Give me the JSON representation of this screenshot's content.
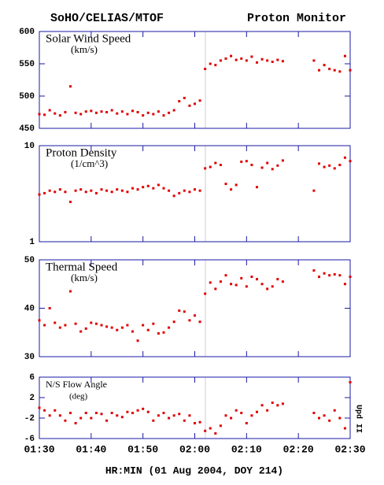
{
  "title_left": "SoHO/CELIAS/MTOF",
  "title_right": "Proton Monitor",
  "xlabel": "HR:MIN (01 Aug 2004, DOY 214)",
  "side_note": "Upd II",
  "chart_data": [
    {
      "type": "scatter",
      "title": "Solar Wind Speed",
      "units": "(km/s)",
      "color": "#e00000",
      "x": [
        0,
        1,
        2,
        3,
        4,
        5,
        6,
        7,
        8,
        9,
        10,
        11,
        12,
        13,
        14,
        15,
        16,
        17,
        18,
        19,
        20,
        21,
        22,
        23,
        24,
        25,
        26,
        27,
        28,
        29,
        30,
        31,
        32,
        33,
        34,
        35,
        36,
        37,
        38,
        39,
        40,
        41,
        42,
        43,
        44,
        45,
        46,
        47,
        53,
        54,
        55,
        56,
        57,
        58,
        59,
        60
      ],
      "values": [
        472,
        471,
        478,
        473,
        470,
        475,
        515,
        474,
        472,
        476,
        477,
        474,
        476,
        475,
        478,
        473,
        476,
        472,
        477,
        475,
        470,
        474,
        472,
        476,
        470,
        474,
        478,
        492,
        497,
        485,
        488,
        493,
        542,
        550,
        548,
        555,
        558,
        562,
        556,
        558,
        555,
        561,
        552,
        557,
        555,
        553,
        556,
        554,
        555,
        540,
        548,
        542,
        540,
        538,
        562,
        540
      ],
      "xlim": [
        0,
        60
      ],
      "ylim": [
        450,
        600
      ],
      "yticks": [
        450,
        500,
        550,
        600
      ]
    },
    {
      "type": "scatter",
      "title": "Proton Density",
      "units": "(1/cm^3)",
      "color": "#e00000",
      "log": true,
      "x": [
        0,
        1,
        2,
        3,
        4,
        5,
        6,
        7,
        8,
        9,
        10,
        11,
        12,
        13,
        14,
        15,
        16,
        17,
        18,
        19,
        20,
        21,
        22,
        23,
        24,
        25,
        26,
        27,
        28,
        29,
        30,
        31,
        32,
        33,
        34,
        35,
        36,
        37,
        38,
        39,
        40,
        41,
        42,
        43,
        44,
        45,
        46,
        47,
        53,
        54,
        55,
        56,
        57,
        58,
        59,
        60
      ],
      "values": [
        3.1,
        3.2,
        3.4,
        3.3,
        3.5,
        3.3,
        2.6,
        3.4,
        3.5,
        3.3,
        3.4,
        3.2,
        3.5,
        3.4,
        3.3,
        3.5,
        3.4,
        3.3,
        3.6,
        3.5,
        3.7,
        3.8,
        3.6,
        3.9,
        3.6,
        3.4,
        3.0,
        3.2,
        3.4,
        3.3,
        3.5,
        3.4,
        5.8,
        6.0,
        6.6,
        6.3,
        4.0,
        3.5,
        3.9,
        6.8,
        6.9,
        6.3,
        3.7,
        5.9,
        6.6,
        5.7,
        6.2,
        7.0,
        3.4,
        6.5,
        6.0,
        6.2,
        5.8,
        6.3,
        7.5,
        6.9
      ],
      "xlim": [
        0,
        60
      ],
      "ylim": [
        1,
        10
      ],
      "yticks": [
        1,
        10
      ]
    },
    {
      "type": "scatter",
      "title": "Thermal Speed",
      "units": "(km/s)",
      "color": "#e00000",
      "x": [
        0,
        1,
        2,
        3,
        4,
        5,
        6,
        7,
        8,
        9,
        10,
        11,
        12,
        13,
        14,
        15,
        16,
        17,
        18,
        19,
        20,
        21,
        22,
        23,
        24,
        25,
        26,
        27,
        28,
        29,
        30,
        31,
        32,
        33,
        34,
        35,
        36,
        37,
        38,
        39,
        40,
        41,
        42,
        43,
        44,
        45,
        46,
        47,
        53,
        54,
        55,
        56,
        57,
        58,
        59,
        60
      ],
      "values": [
        37.5,
        36.5,
        40,
        37,
        36,
        36.5,
        43.5,
        36.8,
        35.2,
        35.8,
        37,
        36.8,
        36.5,
        36.2,
        36,
        35.5,
        36,
        36.5,
        35.2,
        33.3,
        36.5,
        35.5,
        36.8,
        34.8,
        35,
        36,
        37.2,
        39.5,
        39.3,
        37.5,
        38.5,
        37.2,
        43,
        45.3,
        44,
        45.5,
        46.8,
        45,
        44.8,
        46.2,
        44.5,
        46.5,
        46,
        45,
        44,
        44.5,
        46,
        45.5,
        47.8,
        46.5,
        47.2,
        46.8,
        47,
        46.8,
        45,
        46.5
      ],
      "xlim": [
        0,
        60
      ],
      "ylim": [
        30,
        50
      ],
      "yticks": [
        30,
        40,
        50
      ]
    },
    {
      "type": "scatter",
      "title": "N/S Flow Angle",
      "units": "(deg)",
      "color": "#e00000",
      "x": [
        0,
        1,
        2,
        3,
        4,
        5,
        6,
        7,
        8,
        9,
        10,
        11,
        12,
        13,
        14,
        15,
        16,
        17,
        18,
        19,
        20,
        21,
        22,
        23,
        24,
        25,
        26,
        27,
        28,
        29,
        30,
        31,
        32,
        33,
        34,
        35,
        36,
        37,
        38,
        39,
        40,
        41,
        42,
        43,
        44,
        45,
        46,
        47,
        53,
        54,
        55,
        56,
        57,
        58,
        59,
        60
      ],
      "values": [
        0,
        -0.5,
        -1.5,
        -0.5,
        -1.5,
        -2.5,
        -1,
        -3,
        -2,
        -1,
        -2,
        -1,
        -1.2,
        -2.5,
        -1,
        -1.5,
        -1.8,
        -0.8,
        -1,
        -0.5,
        -0.2,
        -0.8,
        -2.5,
        -1.5,
        -1,
        -2,
        -1.5,
        -1.2,
        -2.5,
        -1.5,
        -3,
        -2.8,
        -4.5,
        -4,
        -5,
        -3.5,
        -1.5,
        -2,
        -0.5,
        -1,
        -3,
        -1.5,
        -0.8,
        0.5,
        -0.5,
        1,
        0.5,
        0.8,
        -1,
        -2,
        -1.5,
        -2.5,
        -0.5,
        -2,
        -4,
        5
      ],
      "xlim": [
        0,
        60
      ],
      "ylim": [
        -6,
        6
      ],
      "yticks": [
        -6,
        -2,
        2,
        6
      ],
      "xticks": [
        {
          "value": 0,
          "label": "01:30"
        },
        {
          "value": 10,
          "label": "01:40"
        },
        {
          "value": 20,
          "label": "01:50"
        },
        {
          "value": 30,
          "label": "02:00"
        },
        {
          "value": 40,
          "label": "02:10"
        },
        {
          "value": 50,
          "label": "02:20"
        },
        {
          "value": 60,
          "label": "02:30"
        }
      ]
    }
  ]
}
